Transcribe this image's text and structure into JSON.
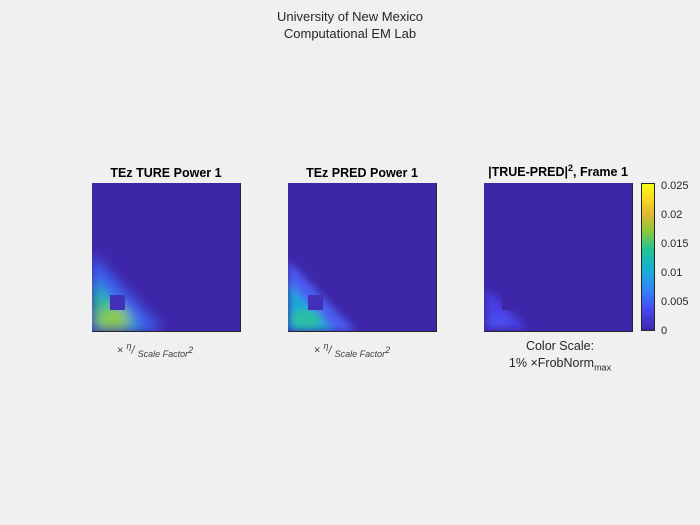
{
  "figure": {
    "suptitle_line1": "University of New Mexico",
    "suptitle_line2": "Computational EM Lab"
  },
  "panels": [
    {
      "title": "TEz  TURE Power 1"
    },
    {
      "title": "TEz  PRED Power 1"
    },
    {
      "title_main": "|TRUE-PRED|",
      "title_sup": "2",
      "title_tail": ", Frame 1"
    }
  ],
  "labels": {
    "times": "×",
    "eta": "η",
    "slash": "/",
    "scale_factor": "Scale Factor",
    "scale_sup": "2",
    "color_scale_line1": "Color Scale:",
    "color_scale_prefix": "1%",
    "frobnorm": "FrobNorm",
    "frob_sub": "max"
  },
  "colorbar": {
    "ticks": [
      "0.025",
      "0.02",
      "0.015",
      "0.01",
      "0.005",
      "0"
    ],
    "colormap": [
      "#3e26a8",
      "#4748f4",
      "#2e87f7",
      "#14b2d2",
      "#23c294",
      "#8dc837",
      "#e4b834",
      "#f9d91f",
      "#f9fb14"
    ]
  },
  "chart_data": {
    "type": "heatmap",
    "colormap": "parula",
    "clim": [
      0,
      0.026
    ],
    "panels": [
      {
        "name": "TEz TURE Power 1",
        "peak_value": 0.02,
        "region": "bottom-left corner"
      },
      {
        "name": "TEz PRED Power 1",
        "peak_value": 0.017,
        "region": "bottom-left corner"
      },
      {
        "name": "|TRUE-PRED|^2, Frame 1",
        "peak_value": 0.004,
        "region": "bottom-left corner"
      }
    ]
  }
}
